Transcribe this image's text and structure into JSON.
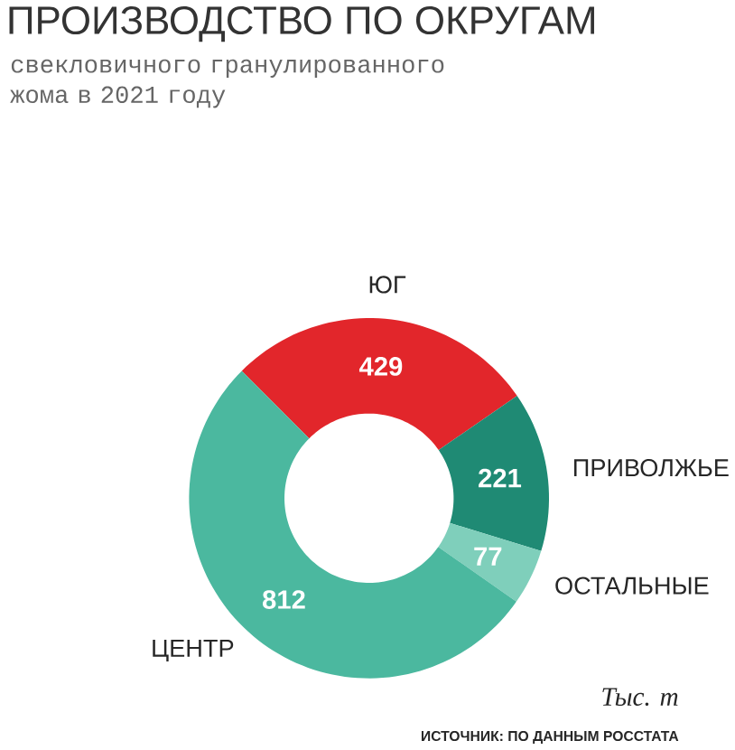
{
  "chart_data": {
    "type": "donut",
    "title": "ПРОИЗВОДСТВО ПО ОКРУГАМ",
    "subtitle": "свекловичного гранулированного жома в 2021 году",
    "categories": [
      "ЮГ",
      "ПРИВОЛЖЬЕ",
      "ОСТАЛЬНЫЕ",
      "ЦЕНТР"
    ],
    "values": [
      429,
      221,
      77,
      812
    ],
    "colors": [
      "#e2262b",
      "#1f8a74",
      "#7fcfbb",
      "#4bb89f"
    ],
    "data_labels": true,
    "annotations": [
      "Тыс. т",
      "ИСТОЧНИК: ПО ДАННЫМ РОССТАТА"
    ]
  }
}
